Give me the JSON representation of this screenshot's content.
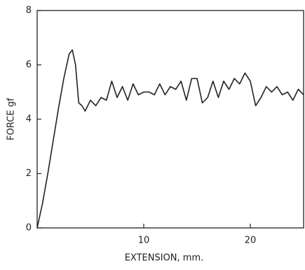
{
  "chart_data": {
    "type": "line",
    "xlabel": "EXTENSION, mm.",
    "ylabel": "FORCE gf",
    "xlim": [
      0,
      25
    ],
    "ylim": [
      0,
      8
    ],
    "xticks": [
      10,
      20
    ],
    "yticks": [
      0,
      2,
      4,
      6,
      8
    ],
    "grid": false,
    "series": [
      {
        "color": "#222222",
        "x": [
          0,
          0.5,
          1,
          1.5,
          2,
          2.5,
          3,
          3.3,
          3.6,
          3.9,
          4.2,
          4.5,
          5,
          5.5,
          6,
          6.5,
          7,
          7.5,
          8,
          8.5,
          9,
          9.5,
          10,
          10.5,
          11,
          11.5,
          12,
          12.5,
          13,
          13.5,
          14,
          14.5,
          15,
          15.5,
          16,
          16.5,
          17,
          17.5,
          18,
          18.5,
          19,
          19.5,
          20,
          20.5,
          21,
          21.5,
          22,
          22.5,
          23,
          23.5,
          24,
          24.5,
          25
        ],
        "values": [
          0,
          0.9,
          2.0,
          3.2,
          4.4,
          5.5,
          6.4,
          6.55,
          6.0,
          4.6,
          4.5,
          4.3,
          4.7,
          4.5,
          4.8,
          4.7,
          5.4,
          4.8,
          5.2,
          4.7,
          5.3,
          4.9,
          5.0,
          5.0,
          4.9,
          5.3,
          4.9,
          5.2,
          5.1,
          5.4,
          4.7,
          5.5,
          5.5,
          4.6,
          4.8,
          5.4,
          4.8,
          5.4,
          5.1,
          5.5,
          5.3,
          5.7,
          5.4,
          4.5,
          4.8,
          5.2,
          5.0,
          5.2,
          4.9,
          5.0,
          4.7,
          5.1,
          4.9
        ]
      }
    ]
  }
}
